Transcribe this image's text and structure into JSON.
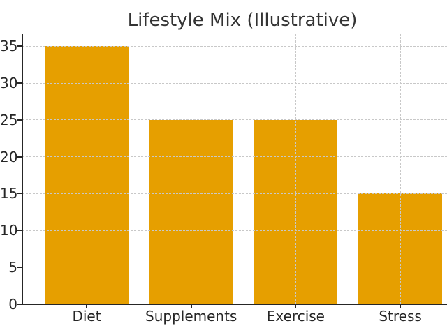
{
  "chart_data": {
    "type": "bar",
    "title": "Lifestyle Mix (Illustrative)",
    "categories": [
      "Diet",
      "Supplements",
      "Exercise",
      "Stress"
    ],
    "values": [
      35,
      25,
      25,
      15
    ],
    "xlabel": "",
    "ylabel": "",
    "yticks": [
      0,
      5,
      10,
      15,
      20,
      25,
      30,
      35
    ],
    "ylim": [
      0,
      36.75
    ],
    "bar_color": "#E69F00",
    "grid": {
      "visible": true,
      "style": "dashed",
      "color": "#c8c8c8",
      "drawn_over_bars": true,
      "vertical_at_categories": true
    },
    "spines": [
      "left",
      "bottom"
    ],
    "spine_color": "#262626",
    "text_color": "#262626",
    "title_color": "#333333",
    "background": "#ffffff",
    "legend_position": "none"
  }
}
